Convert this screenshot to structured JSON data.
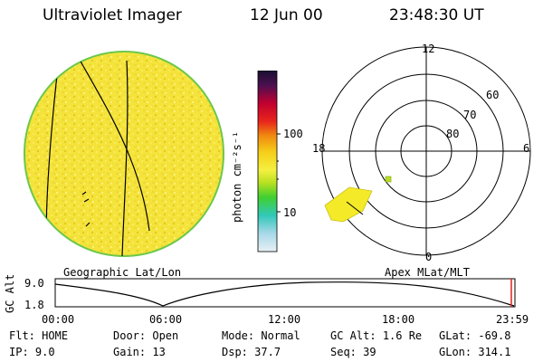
{
  "header": {
    "instrument": "Ultraviolet Imager",
    "date": "12 Jun 00",
    "time": "23:48:30 UT"
  },
  "colorbar": {
    "unit_label": "photon cm⁻²s⁻¹",
    "ticks": [
      "100",
      "10"
    ]
  },
  "polar": {
    "mlt_labels": [
      "12",
      "18",
      "6",
      "0"
    ],
    "lat_labels": [
      "60",
      "70",
      "80"
    ]
  },
  "panels": {
    "left_caption": "Geographic Lat/Lon",
    "right_caption": "Apex MLat/MLT"
  },
  "altitude_plot": {
    "ylabel": "GC Alt",
    "yticks": [
      "9.0",
      "1.8"
    ],
    "xticks": [
      "00:00",
      "06:00",
      "12:00",
      "18:00",
      "23:59"
    ]
  },
  "status": {
    "row1": [
      {
        "label": "Flt:",
        "value": "HOME"
      },
      {
        "label": "Door:",
        "value": "Open"
      },
      {
        "label": "Mode:",
        "value": "Normal"
      },
      {
        "label": "GC Alt:",
        "value": "1.6 Re"
      },
      {
        "label": "GLat:",
        "value": "-69.8"
      }
    ],
    "row2": [
      {
        "label": "IP:",
        "value": "9.0"
      },
      {
        "label": "Gain:",
        "value": "13"
      },
      {
        "label": "Dsp:",
        "value": "37.7"
      },
      {
        "label": "Seq:",
        "value": "39"
      },
      {
        "label": "GLon:",
        "value": "314.1"
      }
    ]
  }
}
